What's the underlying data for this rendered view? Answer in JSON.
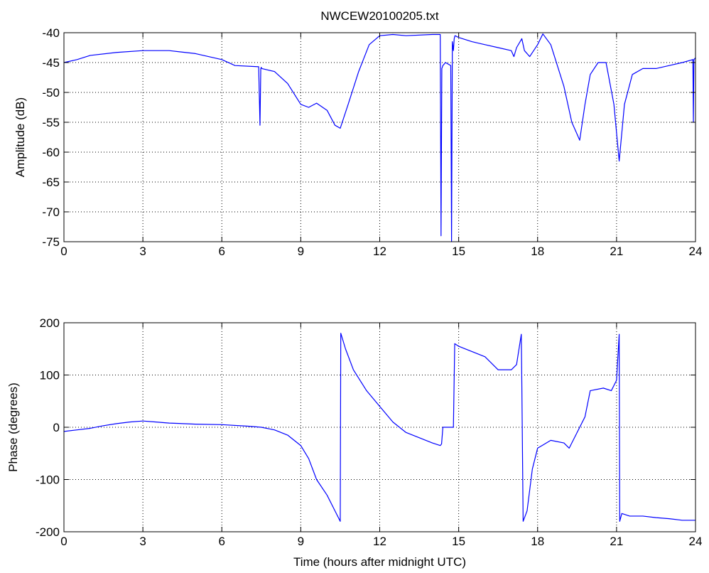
{
  "chart_data": [
    {
      "type": "line",
      "title": "NWCEW20100205.txt",
      "xlabel": "",
      "ylabel": "Amplitude (dB)",
      "xlim": [
        0,
        24
      ],
      "ylim": [
        -75,
        -40
      ],
      "xticks": [
        0,
        3,
        6,
        9,
        12,
        15,
        18,
        21,
        24
      ],
      "yticks": [
        -75,
        -70,
        -65,
        -60,
        -55,
        -50,
        -45,
        -40
      ],
      "grid": true,
      "line_color": "#0000ff",
      "series": [
        {
          "x": [
            0,
            0.5,
            1,
            2,
            3,
            4,
            5,
            6,
            6.5,
            7.4,
            7.45,
            7.48,
            7.5,
            7.52,
            8,
            8.5,
            9,
            9.3,
            9.6,
            10,
            10.3,
            10.5,
            10.8,
            11.2,
            11.6,
            12,
            12.5,
            13,
            14,
            14.3,
            14.33,
            14.36,
            14.4,
            14.5,
            14.7,
            14.73,
            14.76,
            14.8,
            14.83,
            14.86,
            15,
            15.5,
            16,
            16.5,
            17,
            17.1,
            17.2,
            17.4,
            17.5,
            17.7,
            18,
            18.2,
            18.5,
            19,
            19.3,
            19.5,
            19.6,
            19.8,
            20,
            20.3,
            20.6,
            20.9,
            21.1,
            21.3,
            21.6,
            22,
            22.5,
            23,
            23.5,
            23.9,
            23.92,
            23.94,
            24
          ],
          "values": [
            -45,
            -44.5,
            -43.8,
            -43.3,
            -43,
            -43,
            -43.5,
            -44.5,
            -45.5,
            -45.7,
            -55.5,
            -46,
            -45.8,
            -46,
            -46.5,
            -48.5,
            -52,
            -52.5,
            -51.8,
            -53,
            -55.5,
            -56,
            -52,
            -46.5,
            -42,
            -40.5,
            -40.3,
            -40.5,
            -40.3,
            -40.3,
            -74,
            -46,
            -45.5,
            -45,
            -45.5,
            -75,
            -41.5,
            -43,
            -41,
            -40.5,
            -40.8,
            -41.5,
            -42,
            -42.5,
            -43,
            -44,
            -42.5,
            -41,
            -43,
            -44,
            -42,
            -40.2,
            -42,
            -49,
            -55,
            -57,
            -58,
            -52,
            -47,
            -45,
            -45,
            -52,
            -61.5,
            -52,
            -47,
            -46,
            -46,
            -45.5,
            -45,
            -44.5,
            -55,
            -44.5,
            -44.2
          ]
        }
      ]
    },
    {
      "type": "line",
      "title": "",
      "xlabel": "Time (hours after midnight UTC)",
      "ylabel": "Phase (degrees)",
      "xlim": [
        0,
        24
      ],
      "ylim": [
        -200,
        200
      ],
      "xticks": [
        0,
        3,
        6,
        9,
        12,
        15,
        18,
        21,
        24
      ],
      "yticks": [
        -200,
        -100,
        0,
        100,
        200
      ],
      "grid": true,
      "line_color": "#0000ff",
      "series": [
        {
          "x": [
            0,
            0.5,
            1,
            1.5,
            2,
            2.5,
            3,
            3.5,
            4,
            5,
            6,
            7,
            7.5,
            8,
            8.5,
            9,
            9.3,
            9.6,
            10,
            10.3,
            10.5,
            10.52,
            10.7,
            11,
            11.5,
            12,
            12.5,
            13,
            13.5,
            14,
            14.3,
            14.35,
            14.4,
            14.8,
            14.85,
            15,
            15.5,
            16,
            16.5,
            17,
            17.2,
            17.38,
            17.4,
            17.45,
            17.6,
            17.8,
            18,
            18.5,
            19,
            19.2,
            19.5,
            19.8,
            20,
            20.5,
            20.8,
            21,
            21.1,
            21.12,
            21.2,
            21.5,
            22,
            22.5,
            23,
            23.5,
            24
          ],
          "values": [
            -8,
            -5,
            -2,
            3,
            7,
            10,
            12,
            10,
            8,
            6,
            5,
            2,
            0,
            -5,
            -15,
            -35,
            -60,
            -100,
            -130,
            -160,
            -180,
            180,
            150,
            110,
            70,
            40,
            10,
            -10,
            -20,
            -30,
            -35,
            -32,
            0,
            0,
            160,
            155,
            145,
            135,
            110,
            110,
            120,
            178,
            85,
            -180,
            -160,
            -80,
            -40,
            -25,
            -30,
            -40,
            -10,
            20,
            70,
            75,
            70,
            90,
            178,
            -180,
            -165,
            -170,
            -170,
            -173,
            -175,
            -178,
            -178
          ]
        }
      ]
    }
  ]
}
